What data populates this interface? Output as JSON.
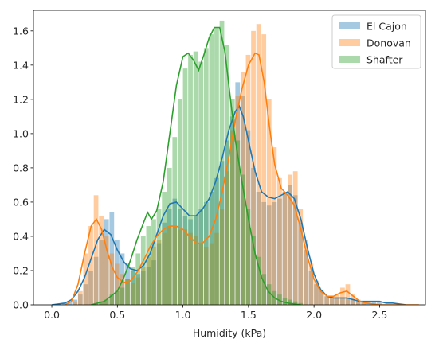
{
  "chart_data": {
    "type": "histogram-kde",
    "xlabel": "Humidity (kPa)",
    "ylabel": "",
    "xlim": [
      -0.14,
      2.85
    ],
    "ylim": [
      0,
      1.72
    ],
    "xticks": [
      "0.0",
      "0.5",
      "1.0",
      "1.5",
      "2.0",
      "2.5"
    ],
    "yticks": [
      "0.0",
      "0.2",
      "0.4",
      "0.6",
      "0.8",
      "1.0",
      "1.2",
      "1.4",
      "1.6"
    ],
    "grid": false,
    "legend_position": "top-right",
    "bin_width": 0.035,
    "series": [
      {
        "name": "El Cajon",
        "color": "#1f77b4",
        "hist": [
          [
            0.08,
            0.01
          ],
          [
            0.12,
            0.02
          ],
          [
            0.16,
            0.03
          ],
          [
            0.2,
            0.06
          ],
          [
            0.24,
            0.12
          ],
          [
            0.28,
            0.2
          ],
          [
            0.32,
            0.28
          ],
          [
            0.36,
            0.38
          ],
          [
            0.4,
            0.5
          ],
          [
            0.44,
            0.54
          ],
          [
            0.48,
            0.38
          ],
          [
            0.52,
            0.3
          ],
          [
            0.56,
            0.24
          ],
          [
            0.6,
            0.2
          ],
          [
            0.64,
            0.18
          ],
          [
            0.68,
            0.2
          ],
          [
            0.72,
            0.22
          ],
          [
            0.76,
            0.26
          ],
          [
            0.8,
            0.36
          ],
          [
            0.84,
            0.48
          ],
          [
            0.88,
            0.56
          ],
          [
            0.92,
            0.62
          ],
          [
            0.96,
            0.56
          ],
          [
            1.0,
            0.52
          ],
          [
            1.04,
            0.5
          ],
          [
            1.08,
            0.52
          ],
          [
            1.12,
            0.56
          ],
          [
            1.16,
            0.6
          ],
          [
            1.2,
            0.66
          ],
          [
            1.24,
            0.74
          ],
          [
            1.28,
            0.84
          ],
          [
            1.32,
            0.96
          ],
          [
            1.36,
            1.1
          ],
          [
            1.4,
            1.3
          ],
          [
            1.44,
            1.22
          ],
          [
            1.48,
            1.02
          ],
          [
            1.52,
            0.8
          ],
          [
            1.56,
            0.66
          ],
          [
            1.6,
            0.6
          ],
          [
            1.64,
            0.58
          ],
          [
            1.68,
            0.6
          ],
          [
            1.72,
            0.62
          ],
          [
            1.76,
            0.66
          ],
          [
            1.8,
            0.7
          ],
          [
            1.84,
            0.64
          ],
          [
            1.88,
            0.48
          ],
          [
            1.92,
            0.32
          ],
          [
            1.96,
            0.2
          ],
          [
            2.0,
            0.12
          ],
          [
            2.04,
            0.08
          ],
          [
            2.08,
            0.05
          ],
          [
            2.12,
            0.04
          ],
          [
            2.16,
            0.04
          ],
          [
            2.2,
            0.04
          ],
          [
            2.24,
            0.04
          ],
          [
            2.28,
            0.03
          ],
          [
            2.32,
            0.02
          ],
          [
            2.36,
            0.02
          ],
          [
            2.4,
            0.02
          ],
          [
            2.44,
            0.02
          ],
          [
            2.48,
            0.02
          ]
        ],
        "kde": [
          [
            0.0,
            0.0
          ],
          [
            0.05,
            0.005
          ],
          [
            0.1,
            0.01
          ],
          [
            0.15,
            0.03
          ],
          [
            0.2,
            0.08
          ],
          [
            0.25,
            0.16
          ],
          [
            0.3,
            0.27
          ],
          [
            0.35,
            0.38
          ],
          [
            0.4,
            0.44
          ],
          [
            0.45,
            0.41
          ],
          [
            0.5,
            0.32
          ],
          [
            0.55,
            0.25
          ],
          [
            0.6,
            0.21
          ],
          [
            0.65,
            0.2
          ],
          [
            0.7,
            0.23
          ],
          [
            0.75,
            0.3
          ],
          [
            0.8,
            0.41
          ],
          [
            0.85,
            0.52
          ],
          [
            0.9,
            0.59
          ],
          [
            0.95,
            0.6
          ],
          [
            1.0,
            0.56
          ],
          [
            1.05,
            0.52
          ],
          [
            1.1,
            0.52
          ],
          [
            1.15,
            0.56
          ],
          [
            1.2,
            0.62
          ],
          [
            1.25,
            0.72
          ],
          [
            1.3,
            0.86
          ],
          [
            1.35,
            1.02
          ],
          [
            1.4,
            1.13
          ],
          [
            1.43,
            1.16
          ],
          [
            1.46,
            1.1
          ],
          [
            1.5,
            0.96
          ],
          [
            1.55,
            0.78
          ],
          [
            1.6,
            0.66
          ],
          [
            1.65,
            0.63
          ],
          [
            1.7,
            0.62
          ],
          [
            1.75,
            0.64
          ],
          [
            1.8,
            0.66
          ],
          [
            1.85,
            0.62
          ],
          [
            1.9,
            0.5
          ],
          [
            1.95,
            0.33
          ],
          [
            2.0,
            0.18
          ],
          [
            2.05,
            0.09
          ],
          [
            2.1,
            0.05
          ],
          [
            2.15,
            0.04
          ],
          [
            2.2,
            0.04
          ],
          [
            2.25,
            0.04
          ],
          [
            2.3,
            0.03
          ],
          [
            2.35,
            0.02
          ],
          [
            2.4,
            0.02
          ],
          [
            2.45,
            0.02
          ],
          [
            2.5,
            0.02
          ],
          [
            2.55,
            0.01
          ],
          [
            2.6,
            0.01
          ],
          [
            2.7,
            0.0
          ]
        ]
      },
      {
        "name": "Donovan",
        "color": "#ff7f0e",
        "hist": [
          [
            0.16,
            0.02
          ],
          [
            0.2,
            0.08
          ],
          [
            0.24,
            0.3
          ],
          [
            0.28,
            0.46
          ],
          [
            0.32,
            0.64
          ],
          [
            0.36,
            0.52
          ],
          [
            0.4,
            0.4
          ],
          [
            0.44,
            0.3
          ],
          [
            0.48,
            0.24
          ],
          [
            0.52,
            0.18
          ],
          [
            0.56,
            0.15
          ],
          [
            0.6,
            0.13
          ],
          [
            0.64,
            0.16
          ],
          [
            0.68,
            0.22
          ],
          [
            0.72,
            0.28
          ],
          [
            0.76,
            0.34
          ],
          [
            0.8,
            0.38
          ],
          [
            0.84,
            0.42
          ],
          [
            0.88,
            0.46
          ],
          [
            0.92,
            0.46
          ],
          [
            0.96,
            0.44
          ],
          [
            1.0,
            0.44
          ],
          [
            1.04,
            0.42
          ],
          [
            1.08,
            0.4
          ],
          [
            1.12,
            0.36
          ],
          [
            1.16,
            0.34
          ],
          [
            1.2,
            0.36
          ],
          [
            1.24,
            0.42
          ],
          [
            1.28,
            0.56
          ],
          [
            1.32,
            0.78
          ],
          [
            1.36,
            1.02
          ],
          [
            1.4,
            1.22
          ],
          [
            1.44,
            1.36
          ],
          [
            1.48,
            1.46
          ],
          [
            1.52,
            1.6
          ],
          [
            1.56,
            1.64
          ],
          [
            1.6,
            1.58
          ],
          [
            1.64,
            1.2
          ],
          [
            1.68,
            0.92
          ],
          [
            1.72,
            0.74
          ],
          [
            1.76,
            0.66
          ],
          [
            1.8,
            0.76
          ],
          [
            1.84,
            0.78
          ],
          [
            1.88,
            0.56
          ],
          [
            1.92,
            0.38
          ],
          [
            1.96,
            0.24
          ],
          [
            2.0,
            0.14
          ],
          [
            2.04,
            0.08
          ],
          [
            2.08,
            0.05
          ],
          [
            2.12,
            0.05
          ],
          [
            2.16,
            0.06
          ],
          [
            2.2,
            0.1
          ],
          [
            2.24,
            0.12
          ],
          [
            2.28,
            0.06
          ],
          [
            2.32,
            0.03
          ],
          [
            2.36,
            0.02
          ]
        ],
        "kde": [
          [
            0.1,
            0.0
          ],
          [
            0.15,
            0.02
          ],
          [
            0.2,
            0.12
          ],
          [
            0.25,
            0.3
          ],
          [
            0.3,
            0.46
          ],
          [
            0.34,
            0.5
          ],
          [
            0.38,
            0.44
          ],
          [
            0.42,
            0.32
          ],
          [
            0.46,
            0.22
          ],
          [
            0.5,
            0.16
          ],
          [
            0.55,
            0.13
          ],
          [
            0.6,
            0.14
          ],
          [
            0.65,
            0.19
          ],
          [
            0.7,
            0.26
          ],
          [
            0.75,
            0.34
          ],
          [
            0.8,
            0.4
          ],
          [
            0.85,
            0.44
          ],
          [
            0.9,
            0.46
          ],
          [
            0.95,
            0.46
          ],
          [
            1.0,
            0.44
          ],
          [
            1.05,
            0.4
          ],
          [
            1.1,
            0.36
          ],
          [
            1.15,
            0.36
          ],
          [
            1.2,
            0.4
          ],
          [
            1.25,
            0.5
          ],
          [
            1.3,
            0.66
          ],
          [
            1.35,
            0.86
          ],
          [
            1.4,
            1.08
          ],
          [
            1.45,
            1.26
          ],
          [
            1.5,
            1.4
          ],
          [
            1.55,
            1.47
          ],
          [
            1.58,
            1.46
          ],
          [
            1.62,
            1.3
          ],
          [
            1.66,
            1.04
          ],
          [
            1.7,
            0.82
          ],
          [
            1.75,
            0.68
          ],
          [
            1.8,
            0.64
          ],
          [
            1.85,
            0.58
          ],
          [
            1.9,
            0.44
          ],
          [
            1.95,
            0.28
          ],
          [
            2.0,
            0.15
          ],
          [
            2.05,
            0.08
          ],
          [
            2.1,
            0.05
          ],
          [
            2.15,
            0.05
          ],
          [
            2.2,
            0.07
          ],
          [
            2.25,
            0.08
          ],
          [
            2.3,
            0.05
          ],
          [
            2.35,
            0.02
          ],
          [
            2.4,
            0.01
          ],
          [
            2.5,
            0.0
          ],
          [
            2.8,
            0.0
          ]
        ]
      },
      {
        "name": "Shafter",
        "color": "#2ca02c",
        "hist": [
          [
            0.32,
            0.01
          ],
          [
            0.36,
            0.02
          ],
          [
            0.4,
            0.03
          ],
          [
            0.44,
            0.06
          ],
          [
            0.48,
            0.08
          ],
          [
            0.52,
            0.1
          ],
          [
            0.56,
            0.15
          ],
          [
            0.6,
            0.22
          ],
          [
            0.64,
            0.3
          ],
          [
            0.68,
            0.4
          ],
          [
            0.72,
            0.46
          ],
          [
            0.76,
            0.5
          ],
          [
            0.8,
            0.56
          ],
          [
            0.84,
            0.66
          ],
          [
            0.88,
            0.8
          ],
          [
            0.92,
            0.98
          ],
          [
            0.96,
            1.2
          ],
          [
            1.0,
            1.38
          ],
          [
            1.04,
            1.46
          ],
          [
            1.08,
            1.48
          ],
          [
            1.12,
            1.42
          ],
          [
            1.16,
            1.5
          ],
          [
            1.2,
            1.58
          ],
          [
            1.24,
            1.62
          ],
          [
            1.28,
            1.66
          ],
          [
            1.32,
            1.52
          ],
          [
            1.36,
            1.2
          ],
          [
            1.4,
            0.96
          ],
          [
            1.44,
            0.76
          ],
          [
            1.48,
            0.56
          ],
          [
            1.52,
            0.4
          ],
          [
            1.56,
            0.28
          ],
          [
            1.6,
            0.18
          ],
          [
            1.64,
            0.12
          ],
          [
            1.68,
            0.08
          ],
          [
            1.72,
            0.06
          ],
          [
            1.76,
            0.04
          ],
          [
            1.8,
            0.03
          ],
          [
            1.84,
            0.02
          ],
          [
            1.88,
            0.01
          ]
        ],
        "kde": [
          [
            0.3,
            0.0
          ],
          [
            0.4,
            0.02
          ],
          [
            0.5,
            0.08
          ],
          [
            0.55,
            0.16
          ],
          [
            0.6,
            0.26
          ],
          [
            0.65,
            0.38
          ],
          [
            0.7,
            0.48
          ],
          [
            0.73,
            0.54
          ],
          [
            0.76,
            0.5
          ],
          [
            0.8,
            0.55
          ],
          [
            0.85,
            0.72
          ],
          [
            0.9,
            1.0
          ],
          [
            0.95,
            1.28
          ],
          [
            1.0,
            1.45
          ],
          [
            1.04,
            1.47
          ],
          [
            1.08,
            1.43
          ],
          [
            1.12,
            1.37
          ],
          [
            1.16,
            1.46
          ],
          [
            1.2,
            1.56
          ],
          [
            1.24,
            1.62
          ],
          [
            1.28,
            1.62
          ],
          [
            1.32,
            1.48
          ],
          [
            1.36,
            1.22
          ],
          [
            1.4,
            0.96
          ],
          [
            1.45,
            0.72
          ],
          [
            1.5,
            0.5
          ],
          [
            1.55,
            0.3
          ],
          [
            1.6,
            0.16
          ],
          [
            1.65,
            0.08
          ],
          [
            1.7,
            0.04
          ],
          [
            1.75,
            0.02
          ],
          [
            1.8,
            0.01
          ],
          [
            1.9,
            0.0
          ]
        ]
      }
    ]
  }
}
